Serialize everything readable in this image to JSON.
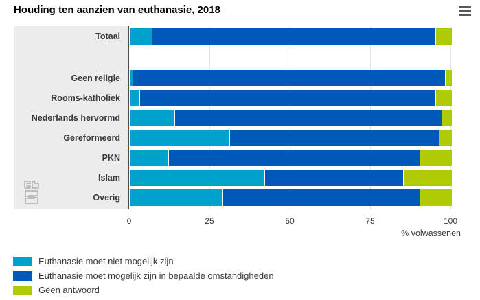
{
  "title": "Houding ten aanzien van euthanasie, 2018",
  "menu": {
    "icon": "hamburger-icon"
  },
  "logo": {
    "name": "cbs-logo",
    "color": "#a3a3a3"
  },
  "axis": {
    "ticks": [
      "0",
      "25",
      "50",
      "75",
      "100"
    ],
    "label": "% volwassenen"
  },
  "colors": {
    "niet_mogelijk": "#00a1cd",
    "wel_mogelijk": "#0058b8",
    "geen_antwoord": "#afcb05",
    "label_panel_bg": "#ececec",
    "axis_line": "#4d4d4d",
    "gridline": "#e4e4e4"
  },
  "chart_data": {
    "type": "bar",
    "orientation": "horizontal",
    "stacked": true,
    "title": "Houding ten aanzien van euthanasie, 2018",
    "xlabel": "% volwassenen",
    "xlim": [
      0,
      100
    ],
    "xticks": [
      0,
      25,
      50,
      75,
      100
    ],
    "grid": true,
    "legend_position": "bottom",
    "categories": [
      "Totaal",
      "Geen religie",
      "Rooms-katholiek",
      "Nederlands hervormd",
      "Gereformeerd",
      "PKN",
      "Islam",
      "Overig"
    ],
    "series": [
      {
        "name": "Euthanasie moet niet mogelijk zijn",
        "color": "#00a1cd",
        "values": [
          7,
          1,
          3,
          14,
          31,
          12,
          42,
          29
        ]
      },
      {
        "name": "Euthanasie moet mogelijk zijn in bepaalde omstandigheden",
        "color": "#0058b8",
        "values": [
          88,
          97,
          92,
          83,
          65,
          78,
          43,
          61
        ]
      },
      {
        "name": "Geen antwoord",
        "color": "#afcb05",
        "values": [
          5,
          2,
          5,
          3,
          4,
          10,
          15,
          10
        ]
      }
    ]
  }
}
